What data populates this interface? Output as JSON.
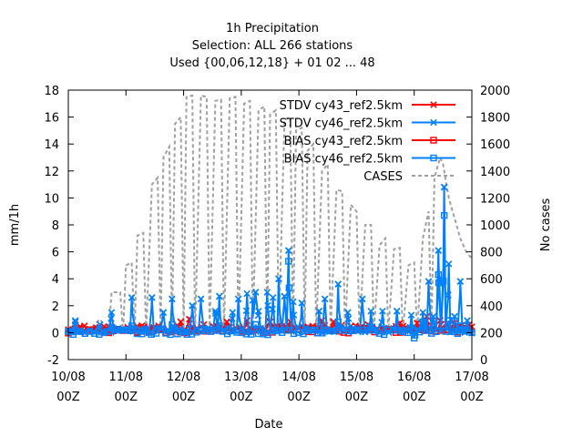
{
  "chart_data": {
    "type": "line",
    "title_lines": [
      "1h Precipitation",
      "Selection: ALL    266 stations",
      "Used {00,06,12,18} + 01 02 ... 48"
    ],
    "xlabel": "Date",
    "ylabel": "mm/1h",
    "y2label": "No cases",
    "x_ticks": [
      {
        "day": 0,
        "line1": "10/08",
        "line2": "00Z"
      },
      {
        "day": 1,
        "line1": "11/08",
        "line2": "00Z"
      },
      {
        "day": 2,
        "line1": "12/08",
        "line2": "00Z"
      },
      {
        "day": 3,
        "line1": "13/08",
        "line2": "00Z"
      },
      {
        "day": 4,
        "line1": "14/08",
        "line2": "00Z"
      },
      {
        "day": 5,
        "line1": "15/08",
        "line2": "00Z"
      },
      {
        "day": 6,
        "line1": "16/08",
        "line2": "00Z"
      },
      {
        "day": 7,
        "line1": "17/08",
        "line2": "00Z"
      }
    ],
    "xlim_days": [
      0,
      7
    ],
    "ylim": [
      -2,
      18
    ],
    "y_ticks": [
      -2,
      0,
      2,
      4,
      6,
      8,
      10,
      12,
      14,
      16,
      18
    ],
    "y2lim": [
      0,
      2000
    ],
    "y2_ticks": [
      0,
      200,
      400,
      600,
      800,
      1000,
      1200,
      1400,
      1600,
      1800,
      2000
    ],
    "legend_position": "top-right",
    "colors": {
      "stdv43": "#ff0000",
      "stdv46": "#0080ff",
      "bias43": "#ff0000",
      "bias46": "#0080ff",
      "cases": "#a0a0a0"
    },
    "series": [
      {
        "name": "STDV cy43_ref2.5km",
        "axis": "y",
        "peaks": [
          {
            "x": 0.12,
            "y": 0.6
          },
          {
            "x": 0.28,
            "y": 0.5
          },
          {
            "x": 0.55,
            "y": 0.4
          },
          {
            "x": 1.3,
            "y": 0.4
          },
          {
            "x": 1.95,
            "y": 0.8
          },
          {
            "x": 2.1,
            "y": 1.0
          },
          {
            "x": 2.35,
            "y": 0.6
          },
          {
            "x": 2.75,
            "y": 0.8
          },
          {
            "x": 3.1,
            "y": 0.9
          },
          {
            "x": 3.5,
            "y": 0.8
          },
          {
            "x": 3.85,
            "y": 0.8
          },
          {
            "x": 4.4,
            "y": 0.9
          },
          {
            "x": 4.6,
            "y": 0.8
          },
          {
            "x": 5.2,
            "y": 0.6
          },
          {
            "x": 5.75,
            "y": 0.7
          },
          {
            "x": 6.05,
            "y": 0.7
          },
          {
            "x": 6.22,
            "y": 1.2
          },
          {
            "x": 6.45,
            "y": 0.9
          },
          {
            "x": 6.7,
            "y": 0.7
          },
          {
            "x": 6.95,
            "y": 0.6
          }
        ]
      },
      {
        "name": "STDV cy46_ref2.5km",
        "axis": "y",
        "peaks": [
          {
            "x": 0.12,
            "y": 0.9
          },
          {
            "x": 0.55,
            "y": 0.6
          },
          {
            "x": 0.75,
            "y": 1.5
          },
          {
            "x": 1.1,
            "y": 2.6
          },
          {
            "x": 1.45,
            "y": 2.6
          },
          {
            "x": 1.65,
            "y": 1.5
          },
          {
            "x": 1.8,
            "y": 2.5
          },
          {
            "x": 2.15,
            "y": 2.0
          },
          {
            "x": 2.3,
            "y": 2.5
          },
          {
            "x": 2.55,
            "y": 1.6
          },
          {
            "x": 2.62,
            "y": 2.7
          },
          {
            "x": 2.85,
            "y": 1.5
          },
          {
            "x": 2.95,
            "y": 2.5
          },
          {
            "x": 3.1,
            "y": 2.9
          },
          {
            "x": 3.2,
            "y": 2.4
          },
          {
            "x": 3.25,
            "y": 3.0
          },
          {
            "x": 3.3,
            "y": 1.6
          },
          {
            "x": 3.45,
            "y": 3.0
          },
          {
            "x": 3.55,
            "y": 2.6
          },
          {
            "x": 3.65,
            "y": 4.0
          },
          {
            "x": 3.75,
            "y": 2.7
          },
          {
            "x": 3.82,
            "y": 6.1
          },
          {
            "x": 3.9,
            "y": 2.3
          },
          {
            "x": 4.05,
            "y": 2.2
          },
          {
            "x": 4.35,
            "y": 1.6
          },
          {
            "x": 4.45,
            "y": 2.5
          },
          {
            "x": 4.68,
            "y": 3.6
          },
          {
            "x": 4.85,
            "y": 1.5
          },
          {
            "x": 5.1,
            "y": 2.5
          },
          {
            "x": 5.25,
            "y": 1.6
          },
          {
            "x": 5.45,
            "y": 1.6
          },
          {
            "x": 5.7,
            "y": 1.6
          },
          {
            "x": 5.95,
            "y": 1.3
          },
          {
            "x": 6.15,
            "y": 1.5
          },
          {
            "x": 6.25,
            "y": 3.8
          },
          {
            "x": 6.33,
            "y": 1.2
          },
          {
            "x": 6.42,
            "y": 6.1
          },
          {
            "x": 6.52,
            "y": 10.8
          },
          {
            "x": 6.6,
            "y": 5.1
          },
          {
            "x": 6.7,
            "y": 1.2
          },
          {
            "x": 6.8,
            "y": 3.8
          },
          {
            "x": 6.92,
            "y": 0.9
          }
        ]
      },
      {
        "name": "BIAS cy43_ref2.5km",
        "axis": "y",
        "peaks": [
          {
            "x": 0.12,
            "y": 0.3
          },
          {
            "x": 0.35,
            "y": 0.1
          },
          {
            "x": 0.7,
            "y": 0.0
          },
          {
            "x": 1.2,
            "y": 0.0
          },
          {
            "x": 1.7,
            "y": 0.0
          },
          {
            "x": 2.1,
            "y": 0.3
          },
          {
            "x": 2.6,
            "y": 0.2
          },
          {
            "x": 3.2,
            "y": 0.2
          },
          {
            "x": 3.8,
            "y": 0.3
          },
          {
            "x": 4.4,
            "y": 0.3
          },
          {
            "x": 5.0,
            "y": 0.2
          },
          {
            "x": 5.6,
            "y": 0.2
          },
          {
            "x": 6.2,
            "y": 0.3
          },
          {
            "x": 6.52,
            "y": 0.6
          },
          {
            "x": 6.9,
            "y": 0.5
          }
        ]
      },
      {
        "name": "BIAS cy46_ref2.5km",
        "axis": "y",
        "peaks": [
          {
            "x": 0.12,
            "y": 0.2
          },
          {
            "x": 0.75,
            "y": 0.4
          },
          {
            "x": 1.1,
            "y": 0.5
          },
          {
            "x": 1.8,
            "y": 0.6
          },
          {
            "x": 2.62,
            "y": 0.5
          },
          {
            "x": 3.25,
            "y": 0.6
          },
          {
            "x": 3.82,
            "y": 5.3
          },
          {
            "x": 4.68,
            "y": 0.8
          },
          {
            "x": 5.25,
            "y": 0.4
          },
          {
            "x": 6.0,
            "y": -0.4
          },
          {
            "x": 6.15,
            "y": 0.8
          },
          {
            "x": 6.42,
            "y": 4.3
          },
          {
            "x": 6.52,
            "y": 8.7
          },
          {
            "x": 6.6,
            "y": 0.9
          },
          {
            "x": 6.8,
            "y": 0.5
          },
          {
            "x": 6.92,
            "y": 0.2
          }
        ]
      },
      {
        "name": "CASES",
        "axis": "y2",
        "points": [
          [
            0.0,
            200
          ],
          [
            0.3,
            200
          ],
          [
            0.55,
            300
          ],
          [
            0.7,
            200
          ],
          [
            0.75,
            500
          ],
          [
            0.9,
            500
          ],
          [
            0.95,
            200
          ],
          [
            1.0,
            700
          ],
          [
            1.1,
            720
          ],
          [
            1.15,
            200
          ],
          [
            1.2,
            920
          ],
          [
            1.3,
            940
          ],
          [
            1.35,
            200
          ],
          [
            1.45,
            1300
          ],
          [
            1.55,
            1350
          ],
          [
            1.6,
            200
          ],
          [
            1.65,
            1500
          ],
          [
            1.75,
            1580
          ],
          [
            1.8,
            200
          ],
          [
            1.85,
            1750
          ],
          [
            1.95,
            1800
          ],
          [
            2.0,
            200
          ],
          [
            2.05,
            1950
          ],
          [
            2.15,
            1960
          ],
          [
            2.2,
            200
          ],
          [
            2.3,
            1960
          ],
          [
            2.4,
            1950
          ],
          [
            2.45,
            200
          ],
          [
            2.55,
            1920
          ],
          [
            2.65,
            1930
          ],
          [
            2.7,
            200
          ],
          [
            2.8,
            1940
          ],
          [
            2.9,
            1950
          ],
          [
            2.95,
            200
          ],
          [
            3.05,
            1900
          ],
          [
            3.15,
            1920
          ],
          [
            3.2,
            200
          ],
          [
            3.3,
            1850
          ],
          [
            3.4,
            1880
          ],
          [
            3.45,
            200
          ],
          [
            3.5,
            1820
          ],
          [
            3.6,
            1850
          ],
          [
            3.65,
            200
          ],
          [
            3.75,
            1780
          ],
          [
            3.85,
            1800
          ],
          [
            3.9,
            200
          ],
          [
            3.95,
            1700
          ],
          [
            4.05,
            1720
          ],
          [
            4.1,
            200
          ],
          [
            4.15,
            1550
          ],
          [
            4.25,
            1600
          ],
          [
            4.3,
            200
          ],
          [
            4.4,
            1400
          ],
          [
            4.5,
            1450
          ],
          [
            4.55,
            200
          ],
          [
            4.65,
            1260
          ],
          [
            4.75,
            1250
          ],
          [
            4.8,
            200
          ],
          [
            4.9,
            1150
          ],
          [
            5.0,
            1100
          ],
          [
            5.05,
            200
          ],
          [
            5.15,
            1000
          ],
          [
            5.25,
            1000
          ],
          [
            5.3,
            200
          ],
          [
            5.4,
            850
          ],
          [
            5.5,
            900
          ],
          [
            5.55,
            200
          ],
          [
            5.65,
            820
          ],
          [
            5.75,
            830
          ],
          [
            5.8,
            200
          ],
          [
            5.9,
            700
          ],
          [
            6.0,
            720
          ],
          [
            6.05,
            200
          ],
          [
            6.15,
            900
          ],
          [
            6.25,
            1100
          ],
          [
            6.3,
            200
          ],
          [
            6.35,
            1350
          ],
          [
            6.45,
            1500
          ],
          [
            6.5,
            1450
          ],
          [
            6.6,
            1200
          ],
          [
            6.7,
            1050
          ],
          [
            6.8,
            900
          ],
          [
            6.9,
            800
          ],
          [
            7.0,
            750
          ]
        ]
      }
    ]
  }
}
